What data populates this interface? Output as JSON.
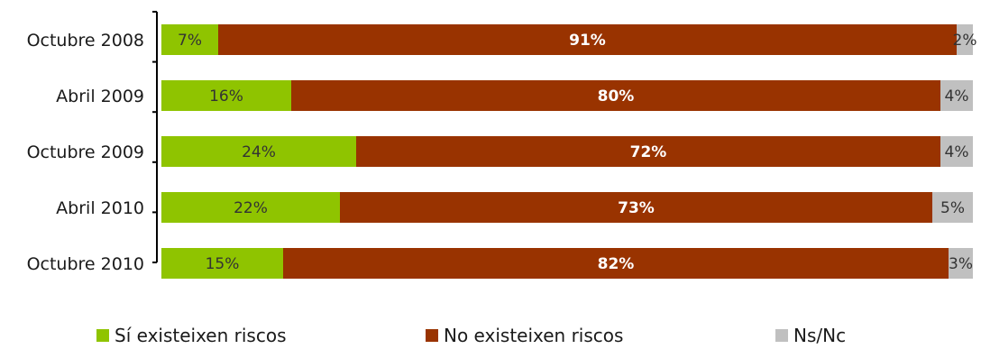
{
  "colors": {
    "yes": "#8fc400",
    "no": "#993300",
    "nsnc": "#c0c0c0"
  },
  "legend": [
    {
      "label": "Sí existeixen riscos",
      "color": "#8fc400"
    },
    {
      "label": "No existeixen riscos",
      "color": "#993300"
    },
    {
      "label": "Ns/Nc",
      "color": "#c0c0c0"
    }
  ],
  "chart_data": {
    "type": "bar",
    "orientation": "horizontal",
    "stacked": "100%",
    "categories": [
      "Octubre 2008",
      "Abril 2009",
      "Octubre 2009",
      "Abril 2010",
      "Octubre 2010"
    ],
    "series": [
      {
        "name": "Sí existeixen riscos",
        "values": [
          7,
          16,
          24,
          22,
          15
        ],
        "color": "#8fc400"
      },
      {
        "name": "No existeixen riscos",
        "values": [
          91,
          80,
          72,
          73,
          82
        ],
        "color": "#993300"
      },
      {
        "name": "Ns/Nc",
        "values": [
          2,
          4,
          4,
          5,
          3
        ],
        "color": "#c0c0c0"
      }
    ],
    "data_labels": [
      [
        "7%",
        "91%",
        "2%"
      ],
      [
        "16%",
        "80%",
        "4%"
      ],
      [
        "24%",
        "72%",
        "4%"
      ],
      [
        "22%",
        "73%",
        "5%"
      ],
      [
        "15%",
        "82%",
        "3%"
      ]
    ],
    "xlim": [
      0,
      100
    ],
    "grid": false,
    "legend_position": "bottom"
  }
}
